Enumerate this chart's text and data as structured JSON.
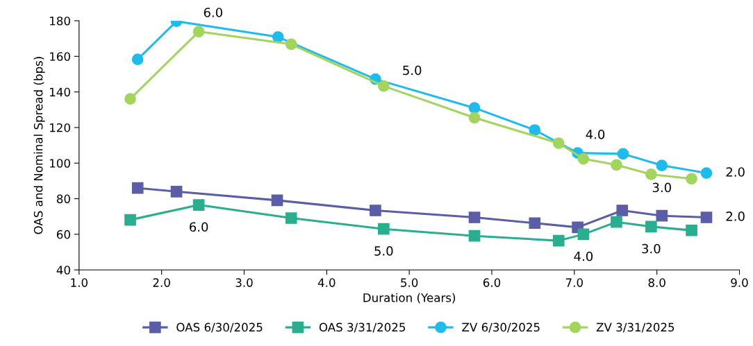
{
  "chart_data": {
    "type": "line",
    "xlabel": "Duration (Years)",
    "ylabel": "OAS and Nominal Spread (bps)",
    "xlim": [
      1.0,
      9.0
    ],
    "xticks": [
      {
        "value": 1,
        "label": "1.0"
      },
      {
        "value": 2,
        "label": "2.0"
      },
      {
        "value": 3,
        "label": "3.0"
      },
      {
        "value": 4,
        "label": "4.0"
      },
      {
        "value": 5,
        "label": "5.0"
      },
      {
        "value": 6,
        "label": "6.0"
      },
      {
        "value": 7,
        "label": "7.0"
      },
      {
        "value": 8,
        "label": "8.0"
      },
      {
        "value": 9,
        "label": "9.0"
      }
    ],
    "ylim": [
      40,
      180
    ],
    "yticks": [
      40,
      60,
      80,
      100,
      120,
      140,
      160,
      180
    ],
    "grid": false,
    "legend": "bottom",
    "series": [
      {
        "name": "OAS 6/30/2025",
        "color": "#5b5ea6",
        "marker": "square",
        "x": [
          1.71,
          2.18,
          3.4,
          4.59,
          5.79,
          6.52,
          7.04,
          7.58,
          8.06,
          8.6
        ],
        "values": [
          86.0,
          84.0,
          79.1,
          73.4,
          69.5,
          66.3,
          63.9,
          73.4,
          70.4,
          69.5
        ]
      },
      {
        "name": "OAS 3/31/2025",
        "color": "#2aae8f",
        "marker": "square",
        "x": [
          1.62,
          2.45,
          3.57,
          4.69,
          5.79,
          6.81,
          7.11,
          7.51,
          7.93,
          8.42
        ],
        "values": [
          68.1,
          76.5,
          69.1,
          63.0,
          59.1,
          56.4,
          60.0,
          66.9,
          64.3,
          62.2
        ]
      },
      {
        "name": "ZV 6/30/2025",
        "color": "#1fbbec",
        "marker": "circle",
        "x": [
          1.71,
          2.18,
          3.41,
          4.59,
          5.79,
          6.52,
          7.04,
          7.59,
          8.06,
          8.6
        ],
        "values": [
          158.3,
          179.7,
          170.9,
          147.2,
          131.0,
          118.6,
          105.7,
          105.2,
          98.7,
          94.4
        ]
      },
      {
        "name": "ZV 3/31/2025",
        "color": "#a2d45e",
        "marker": "circle",
        "x": [
          1.62,
          2.45,
          3.57,
          4.69,
          5.79,
          6.81,
          7.11,
          7.51,
          7.93,
          8.42
        ],
        "values": [
          136.1,
          173.9,
          166.8,
          143.3,
          125.5,
          111.2,
          102.4,
          99.0,
          93.7,
          91.2
        ]
      }
    ],
    "annotations": [
      {
        "text": "6.0",
        "x": 2.18,
        "y": 179.7
      },
      {
        "text": "5.0",
        "x": 4.59,
        "y": 147.2
      },
      {
        "text": "4.0",
        "x": 6.81,
        "y": 111.2
      },
      {
        "text": "3.0",
        "x": 8.06,
        "y": 98.7
      },
      {
        "text": "2.0",
        "x": 8.6,
        "y": 94.4
      },
      {
        "text": "6.0",
        "x": 2.45,
        "y": 76.5
      },
      {
        "text": "5.0",
        "x": 4.69,
        "y": 63.0
      },
      {
        "text": "4.0",
        "x": 7.11,
        "y": 60.0
      },
      {
        "text": "3.0",
        "x": 7.93,
        "y": 64.3
      },
      {
        "text": "2.0",
        "x": 8.6,
        "y": 69.5
      }
    ]
  }
}
